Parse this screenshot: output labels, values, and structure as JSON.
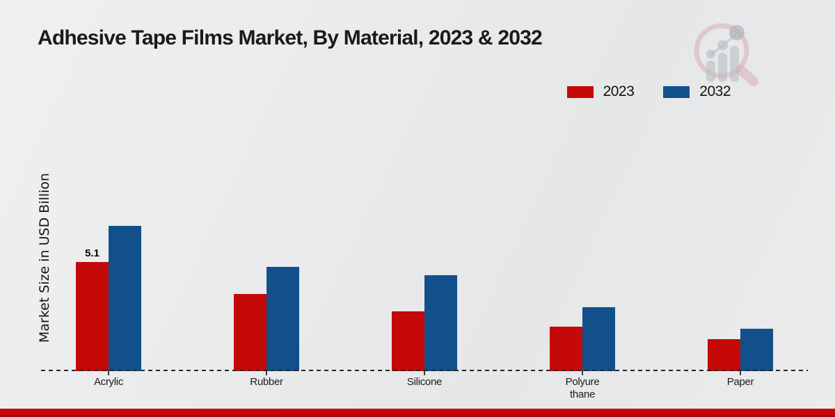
{
  "page": {
    "title": "Adhesive Tape Films Market, By Material, 2023 & 2032",
    "ylabel": "Market Size in USD Billion"
  },
  "chart_data": {
    "type": "bar",
    "title": "Adhesive Tape Films Market, By Material, 2023 & 2032",
    "xlabel": "",
    "ylabel": "Market Size in USD Billion",
    "categories": [
      "Acrylic",
      "Rubber",
      "Silicone",
      "Polyurethane",
      "Paper"
    ],
    "category_display_lines": [
      [
        "Acrylic"
      ],
      [
        "Rubber"
      ],
      [
        "Silicone"
      ],
      [
        "Polyure",
        "thane"
      ],
      [
        "Paper"
      ]
    ],
    "series": [
      {
        "name": "2023",
        "color": "#c50808",
        "values": [
          5.1,
          3.6,
          2.8,
          2.1,
          1.5
        ]
      },
      {
        "name": "2032",
        "color": "#11508a",
        "values": [
          6.8,
          4.9,
          4.5,
          3.0,
          2.0
        ]
      }
    ],
    "data_labels": [
      {
        "series": "2023",
        "category": "Acrylic",
        "text": "5.1"
      }
    ],
    "ylim": [
      0,
      7.5
    ],
    "grid": false,
    "axis_style": "dashed-baseline-only",
    "legend_position": "top-right"
  },
  "branding": {
    "logo_name": "market-research-future-watermark",
    "bottom_bar_color": "#c30505"
  }
}
